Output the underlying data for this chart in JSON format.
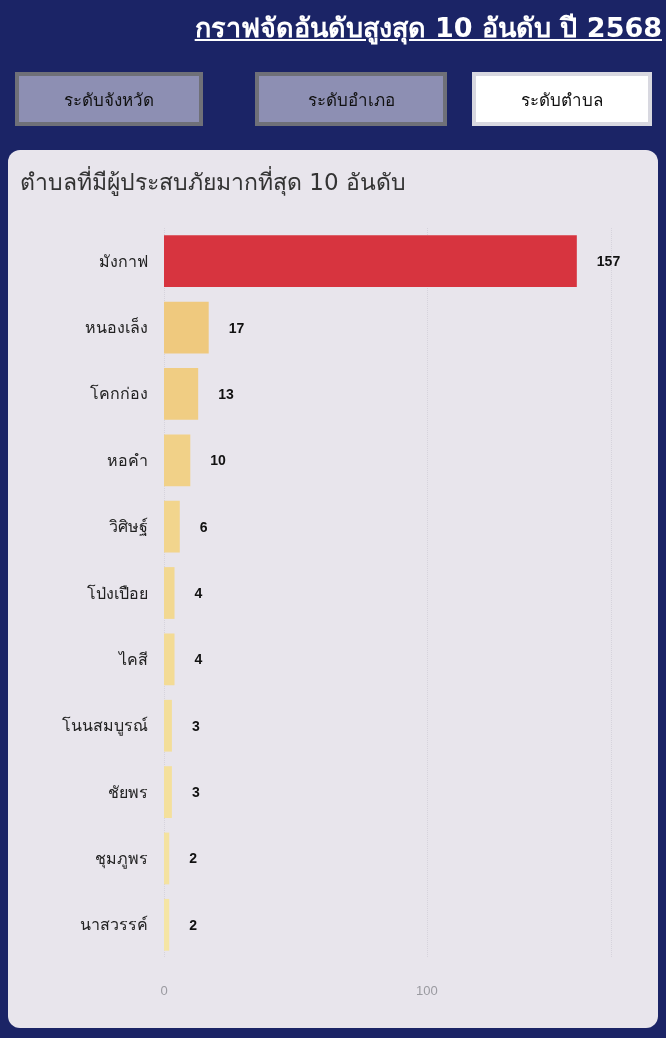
{
  "chart_data": {
    "type": "bar",
    "orientation": "horizontal",
    "title": "กราฟจัดอันดับสูงสุด 10 อันดับ ปี 2568",
    "subtitle": "ตำบลที่มีผู้ประสบภัยมากที่สุด 10 อันดับ",
    "annotations": [
      "ระดับจังหวัด",
      "ระดับอำเภอ",
      "ระดับตำบล"
    ],
    "categories": [
      "มังกาฟ",
      "หนองเล็ง",
      "โคกก่อง",
      "หอคำ",
      "วิศิษฐ์",
      "โป่งเปือย",
      "ไคสี",
      "โนนสมบูรณ์",
      "ชัยพร",
      "ชุมภูพร",
      "นาสวรรค์"
    ],
    "values": [
      157,
      17,
      13,
      10,
      6,
      4,
      4,
      3,
      3,
      2,
      2
    ],
    "colors": [
      "#d7343f",
      "#efc97e",
      "#f0cd83",
      "#f1d188",
      "#f2d58d",
      "#f2d891",
      "#f3db95",
      "#f3de99",
      "#f4e09c",
      "#f4e2a0",
      "#f5e5a4"
    ],
    "xlim": [
      0,
      170
    ],
    "xticks": [
      0,
      100
    ],
    "grid": "x",
    "data_labels": true
  }
}
